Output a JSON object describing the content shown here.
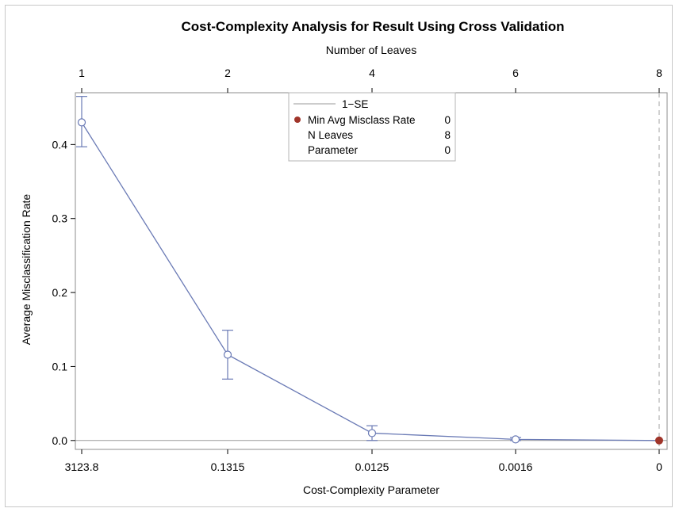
{
  "chart_data": {
    "type": "line",
    "title": "Cost-Complexity Analysis for Result Using Cross Validation",
    "xlabel": "Cost-Complexity Parameter",
    "x2label": "Number of Leaves",
    "ylabel": "Average Misclassification Rate",
    "categories": [
      "3123.8",
      "0.1315",
      "0.0125",
      "0.0016",
      "0"
    ],
    "x2_ticks": [
      "1",
      "2",
      "4",
      "6",
      "8"
    ],
    "ylim": [
      -0.012,
      0.47
    ],
    "yticks": [
      0.0,
      0.1,
      0.2,
      0.3,
      0.4
    ],
    "ytick_labels": [
      "0.0",
      "0.1",
      "0.2",
      "0.3",
      "0.4"
    ],
    "series": [
      {
        "values": [
          0.43,
          0.116,
          0.01,
          0.0015,
          0.0
        ],
        "err_low": [
          0.397,
          0.083,
          0.0,
          0.0,
          0.0
        ],
        "err_high": [
          0.465,
          0.149,
          0.02,
          0.004,
          0.0
        ],
        "color": "#6a7ab5"
      }
    ],
    "one_se_line": 0.0,
    "min_point_index": 4,
    "min_point_color": "#a0352a",
    "reference_line_index": 4,
    "legend": {
      "placement": "top-center",
      "line_label": "1−SE",
      "rows": [
        {
          "label": "Min Avg Misclass Rate",
          "value": "0"
        },
        {
          "label": "N Leaves",
          "value": "8"
        },
        {
          "label": "Parameter",
          "value": "0"
        }
      ]
    },
    "grid": false
  }
}
